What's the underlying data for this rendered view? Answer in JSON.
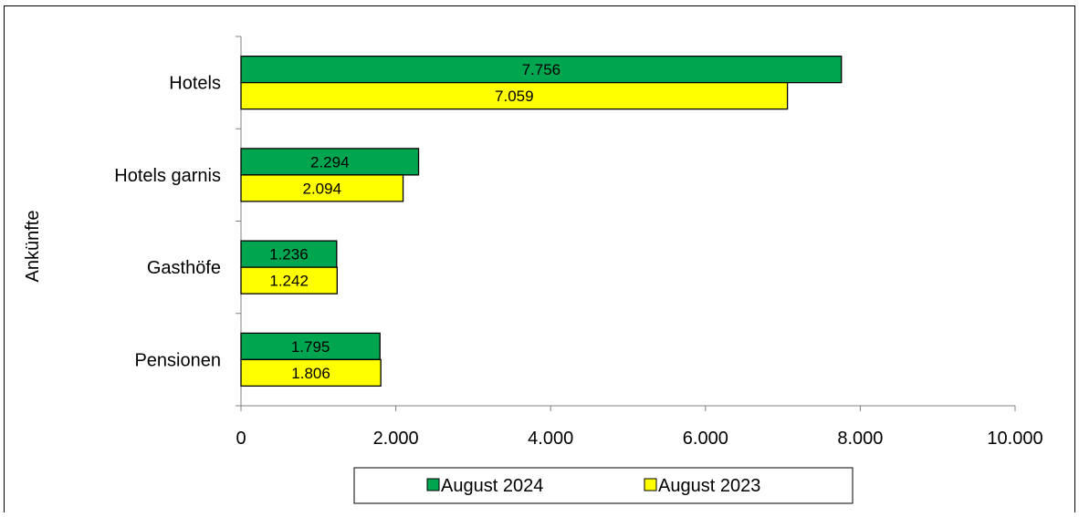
{
  "chart_data": {
    "type": "bar",
    "orientation": "horizontal",
    "categories": [
      "Hotels",
      "Hotels garnis",
      "Gasthöfe",
      "Pensionen"
    ],
    "series": [
      {
        "name": "August 2024",
        "color": "#00A550",
        "values": [
          7756,
          2294,
          1236,
          1795
        ],
        "labels": [
          "7.756",
          "2.294",
          "1.236",
          "1.795"
        ]
      },
      {
        "name": "August 2023",
        "color": "#FFFF00",
        "values": [
          7059,
          2094,
          1242,
          1806
        ],
        "labels": [
          "7.059",
          "2.094",
          "1.242",
          "1.806"
        ]
      }
    ],
    "xlim": [
      0,
      10000
    ],
    "xticks": [
      0,
      2000,
      4000,
      6000,
      8000,
      10000
    ],
    "xtick_labels": [
      "0",
      "2.000",
      "4.000",
      "6.000",
      "8.000",
      "10.000"
    ],
    "ylabel": "Ankünfte",
    "grid": false,
    "legend_position": "bottom"
  }
}
